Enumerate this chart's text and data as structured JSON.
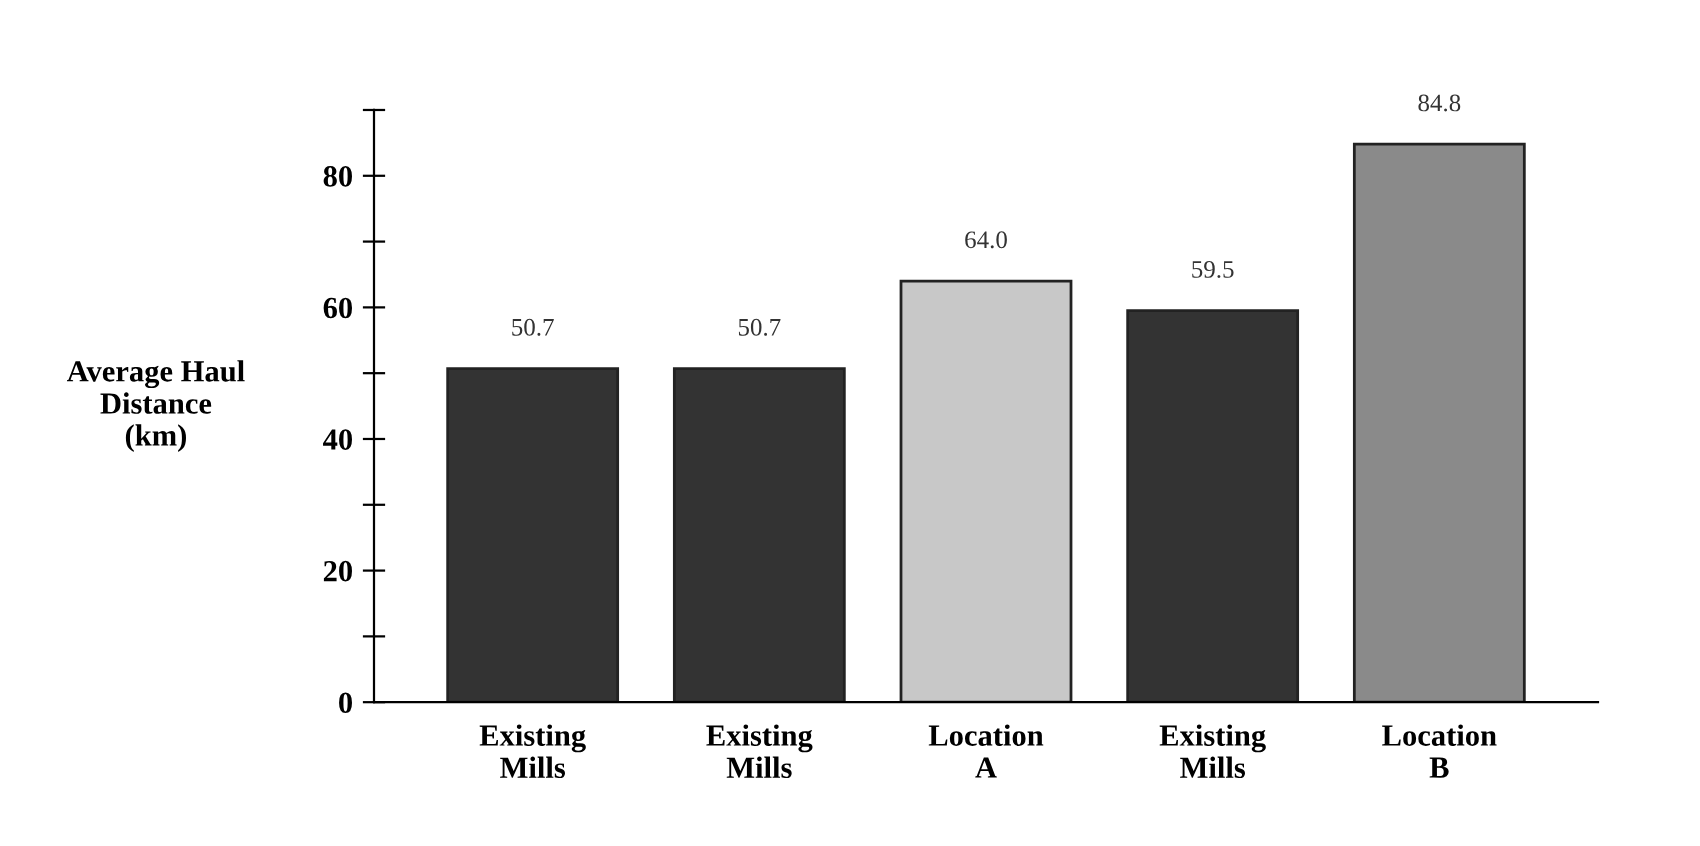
{
  "chart_data": {
    "type": "bar",
    "ylabel": "Average Haul\nDistance\n(km)",
    "categories": [
      "Existing\nMills",
      "Existing\nMills",
      "Location\nA",
      "Existing\nMills",
      "Location\nB"
    ],
    "values": [
      50.7,
      50.7,
      64.0,
      59.5,
      84.8
    ],
    "colors": [
      "#333333",
      "#333333",
      "#c8c8c8",
      "#333333",
      "#8a8a8a"
    ],
    "value_labels": [
      "50.7",
      "50.7",
      "64.0",
      "59.5",
      "84.8"
    ],
    "ylim": [
      0,
      90
    ],
    "yticks": [
      0,
      {
        "value": 10,
        "label": null
      },
      20,
      {
        "value": 30,
        "label": null
      },
      40,
      {
        "value": 50,
        "label": null
      },
      60,
      {
        "value": 70,
        "label": null
      },
      80,
      {
        "value": 90,
        "label": null
      }
    ],
    "grid": false
  }
}
